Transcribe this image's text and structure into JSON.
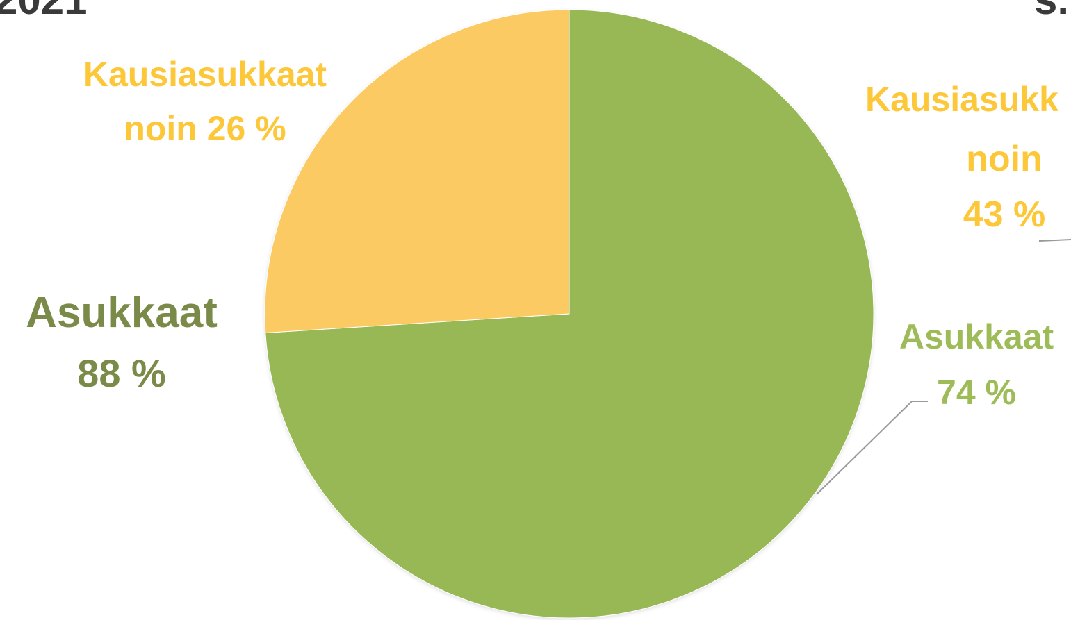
{
  "header": {
    "left_title": "2021",
    "right_title_fragment": "s."
  },
  "colors": {
    "residents": "#97b854",
    "seasonal": "#fcca63",
    "seasonal_text": "#fcc83a",
    "residents_text_dark": "#7a8a48",
    "residents_text_light": "#9dbc58",
    "leader": "#9a9a9a"
  },
  "chart_data": [
    {
      "type": "pie",
      "title": "",
      "slices": [
        {
          "label": "Asukkaat",
          "value": 74,
          "value_text": "74 %",
          "color": "#97b854"
        },
        {
          "label": "Kausiasukkaat",
          "value": 26,
          "value_text": "noin 26 %",
          "color": "#fcca63"
        }
      ],
      "start_angle_deg": 0,
      "direction": "clockwise",
      "labels": {
        "seasonal_line1": "Kausiasukkaat",
        "seasonal_line2": "noin 26 %",
        "residents_line1": "Asukkaat",
        "residents_line2": "88 %",
        "right_seasonal_line1": "Kausiasukk",
        "right_seasonal_line2": "noin",
        "right_seasonal_line3": "43 %",
        "right_residents_line1": "Asukkaat",
        "right_residents_line2": "74 %"
      }
    }
  ]
}
